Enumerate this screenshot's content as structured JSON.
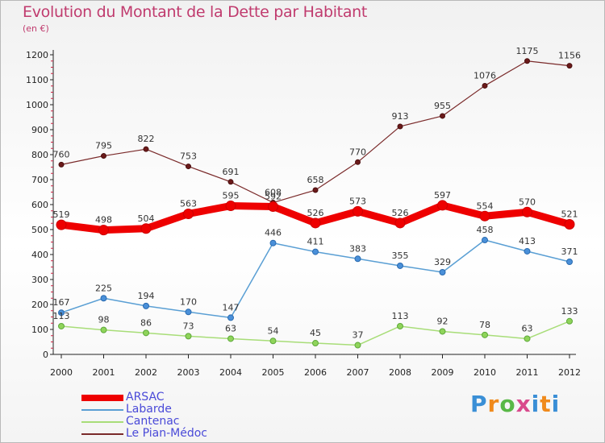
{
  "title": "Evolution du Montant de la Dette par Habitant",
  "unit": "(en €)",
  "logo": "Proxiti",
  "chart_data": {
    "type": "line",
    "title": "Evolution du Montant de la Dette par Habitant",
    "ylabel": "(en €)",
    "xlabel": "",
    "x": [
      "2000",
      "2001",
      "2002",
      "2003",
      "2004",
      "2005",
      "2006",
      "2007",
      "2008",
      "2009",
      "2010",
      "2011",
      "2012"
    ],
    "ylim": [
      0,
      1200
    ],
    "yticks": [
      0,
      100,
      200,
      300,
      400,
      500,
      600,
      700,
      800,
      900,
      1000,
      1100,
      1200
    ],
    "grid": false,
    "legend_position": "bottom-left",
    "series": [
      {
        "name": "ARSAC",
        "color": "#ee0000",
        "values": [
          519,
          498,
          504,
          563,
          595,
          592,
          526,
          573,
          526,
          597,
          554,
          570,
          521
        ]
      },
      {
        "name": "Labarde",
        "color": "#5a9fd4",
        "values": [
          167,
          225,
          194,
          170,
          147,
          446,
          411,
          383,
          355,
          329,
          458,
          413,
          371
        ]
      },
      {
        "name": "Cantenac",
        "color": "#a8dd78",
        "values": [
          113,
          98,
          86,
          73,
          63,
          54,
          45,
          37,
          113,
          92,
          78,
          63,
          133
        ]
      },
      {
        "name": "Le Pian-Médoc",
        "color": "#7a2a2a",
        "values": [
          760,
          795,
          822,
          753,
          691,
          608,
          658,
          770,
          913,
          955,
          1076,
          1175,
          1156
        ]
      }
    ]
  }
}
